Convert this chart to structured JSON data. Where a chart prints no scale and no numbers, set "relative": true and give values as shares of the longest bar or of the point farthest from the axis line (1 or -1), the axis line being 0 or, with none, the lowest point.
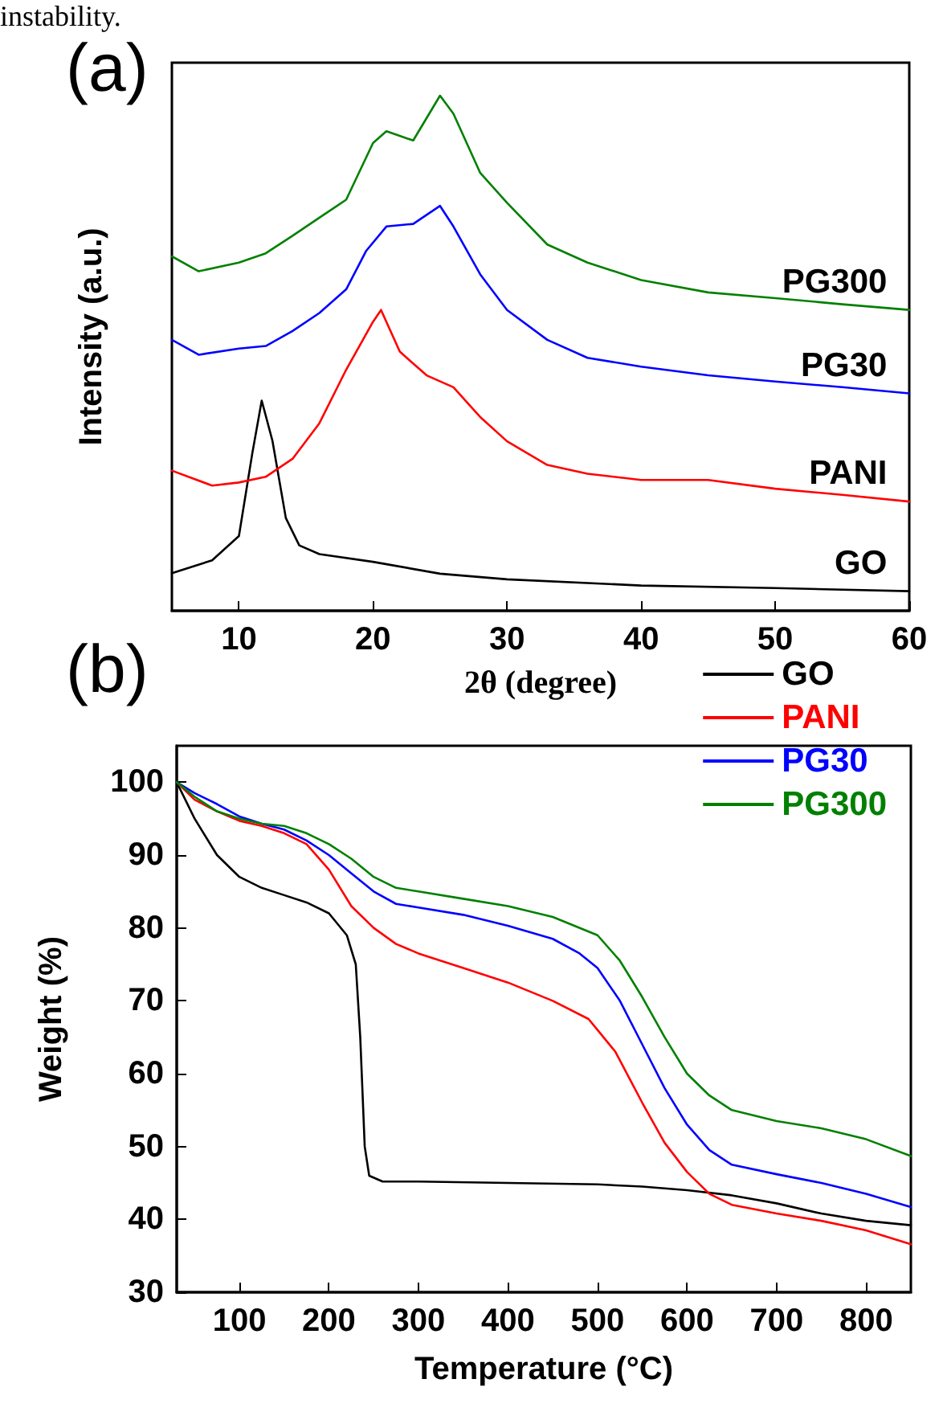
{
  "chart_data": [
    {
      "type": "line",
      "title": "(a)",
      "xlabel": "2θ (degree)",
      "ylabel": "Intensity (a.u.)",
      "relative": true,
      "xlim": [
        5,
        60
      ],
      "xticks": [
        10,
        20,
        30,
        40,
        50,
        60
      ],
      "legend": false,
      "grid": false,
      "marker": "none",
      "line_style": "solid",
      "annotations": [
        "instability."
      ],
      "series": [
        {
          "name": "GO",
          "color": "#000000",
          "x": [
            5,
            8,
            10,
            11,
            11.7,
            12.5,
            13.5,
            14.5,
            16,
            20,
            25,
            30,
            40,
            50,
            60
          ],
          "values": [
            0.073,
            0.098,
            0.145,
            0.306,
            0.408,
            0.33,
            0.18,
            0.127,
            0.11,
            0.095,
            0.072,
            0.061,
            0.049,
            0.044,
            0.038
          ]
        },
        {
          "name": "PANI",
          "color": "#ff0000",
          "x": [
            5,
            8,
            10,
            12,
            14,
            16,
            18,
            20,
            20.6,
            22,
            24,
            26,
            28,
            30,
            33,
            36,
            40,
            45,
            50,
            55,
            60
          ],
          "values": [
            0.272,
            0.243,
            0.249,
            0.26,
            0.295,
            0.364,
            0.468,
            0.561,
            0.584,
            0.503,
            0.457,
            0.434,
            0.376,
            0.329,
            0.283,
            0.266,
            0.254,
            0.254,
            0.237,
            0.225,
            0.212
          ]
        },
        {
          "name": "PG30",
          "color": "#0000ff",
          "x": [
            5,
            7,
            10,
            12,
            14,
            16,
            18,
            19.5,
            21,
            23,
            25,
            26,
            28,
            30,
            33,
            36,
            40,
            45,
            50,
            55,
            60
          ],
          "values": [
            0.526,
            0.497,
            0.509,
            0.514,
            0.543,
            0.578,
            0.624,
            0.699,
            0.746,
            0.751,
            0.786,
            0.746,
            0.653,
            0.584,
            0.526,
            0.491,
            0.474,
            0.457,
            0.445,
            0.434,
            0.422
          ]
        },
        {
          "name": "PG300",
          "color": "#008000",
          "x": [
            5,
            7,
            10,
            12,
            14,
            16,
            18,
            20,
            21,
            23,
            25,
            26,
            28,
            30,
            33,
            36,
            40,
            45,
            50,
            55,
            60
          ],
          "values": [
            0.688,
            0.659,
            0.676,
            0.694,
            0.728,
            0.763,
            0.798,
            0.908,
            0.931,
            0.913,
            1,
            0.965,
            0.85,
            0.792,
            0.711,
            0.676,
            0.642,
            0.618,
            0.607,
            0.595,
            0.584
          ]
        }
      ]
    },
    {
      "type": "line",
      "title": "(b)",
      "xlabel": "Temperature (°C)",
      "ylabel": "Weight (%)",
      "xlim": [
        30,
        850
      ],
      "xticks": [
        100,
        200,
        300,
        400,
        500,
        600,
        700,
        800
      ],
      "ylim": [
        30,
        105
      ],
      "yticks": [
        30,
        40,
        50,
        60,
        70,
        80,
        90,
        100
      ],
      "legend": "top right",
      "grid": false,
      "marker": "none",
      "line_style": "solid",
      "series": [
        {
          "name": "GO",
          "color": "#000000",
          "x": [
            30,
            50,
            75,
            100,
            125,
            150,
            175,
            200,
            220,
            230,
            235,
            240,
            245,
            260,
            300,
            400,
            500,
            550,
            600,
            650,
            700,
            750,
            800,
            850
          ],
          "values": [
            100,
            95,
            90,
            87,
            85.5,
            84.5,
            83.5,
            82,
            79,
            75,
            65,
            50,
            46,
            45.2,
            45.2,
            45,
            44.8,
            44.5,
            44,
            43.3,
            42.2,
            40.8,
            39.8,
            39.2
          ]
        },
        {
          "name": "PANI",
          "color": "#ff0000",
          "x": [
            30,
            50,
            75,
            100,
            125,
            150,
            175,
            200,
            225,
            250,
            275,
            300,
            350,
            400,
            450,
            490,
            520,
            550,
            575,
            600,
            625,
            650,
            700,
            750,
            800,
            850
          ],
          "values": [
            100,
            97.6,
            96,
            94.7,
            94,
            93,
            91.5,
            88,
            83,
            80,
            77.8,
            76.5,
            74.5,
            72.5,
            70,
            67.5,
            63,
            56,
            50.5,
            46.5,
            43.5,
            42,
            40.8,
            39.8,
            38.5,
            36.6
          ]
        },
        {
          "name": "PG30",
          "color": "#0000ff",
          "x": [
            30,
            50,
            75,
            100,
            125,
            150,
            175,
            200,
            225,
            250,
            275,
            300,
            350,
            400,
            450,
            480,
            500,
            525,
            550,
            575,
            600,
            625,
            650,
            700,
            750,
            800,
            850
          ],
          "values": [
            100,
            98.5,
            97,
            95.3,
            94.3,
            93.5,
            92,
            90,
            87.5,
            85,
            83.3,
            82.8,
            81.8,
            80.3,
            78.5,
            76.5,
            74.5,
            70,
            64,
            58,
            53,
            49.5,
            47.5,
            46.2,
            45,
            43.5,
            41.7
          ]
        },
        {
          "name": "PG300",
          "color": "#008000",
          "x": [
            30,
            50,
            75,
            100,
            125,
            150,
            175,
            200,
            225,
            250,
            275,
            300,
            350,
            400,
            450,
            500,
            525,
            550,
            575,
            600,
            625,
            650,
            700,
            750,
            800,
            850
          ],
          "values": [
            100,
            98,
            96,
            95,
            94.3,
            94,
            93,
            91.5,
            89.5,
            87,
            85.5,
            85,
            84,
            83,
            81.5,
            79,
            75.5,
            70.5,
            65,
            60,
            57,
            55,
            53.5,
            52.5,
            51,
            48.7
          ]
        }
      ]
    }
  ]
}
